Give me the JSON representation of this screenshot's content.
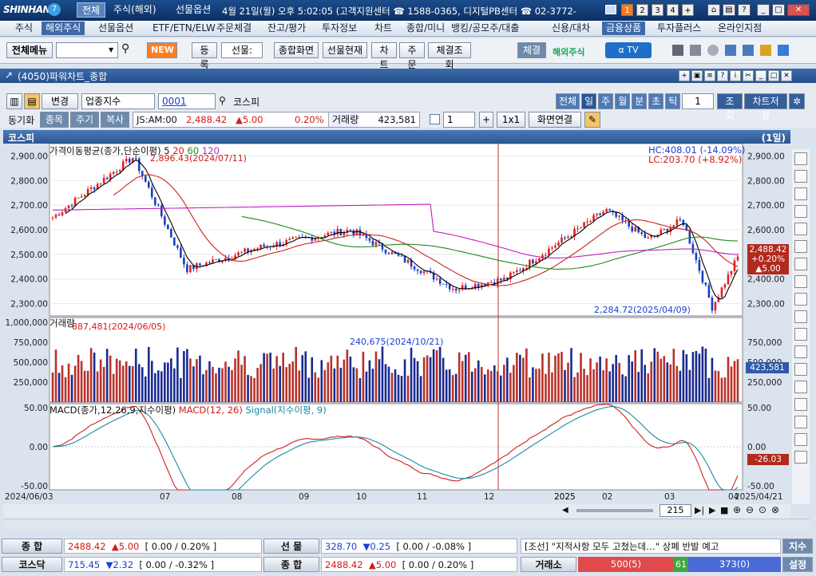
{
  "titlebar": {
    "logo": "SHINHAN",
    "tabs": [
      "전체",
      "주식(해외)",
      "선물옵션"
    ],
    "info": "4월 21일(월) 오후 5:02:05 (고객지원센터 ☎ 1588-0365, 디지털PB센터 ☎ 02-3772-",
    "nums": [
      "1",
      "2",
      "3",
      "4",
      "+"
    ]
  },
  "menu": [
    "주식",
    "해외주식",
    "선물옵션",
    "ETF/ETN/ELW",
    "주문체결",
    "잔고/평가",
    "투자정보",
    "차트",
    "종합/미니",
    "뱅킹/공모주/대출",
    "신용/대차",
    "금융상품",
    "투자플러스",
    "온라인지점"
  ],
  "toolbar": {
    "all_menu": "전체메뉴",
    "new": "NEW",
    "register": "등록",
    "select": "선물:",
    "comp": "종합화면",
    "fut_now": "선물현재",
    "chart": "차트",
    "order": "주문",
    "exec": "체결조회",
    "fill": "체결",
    "overseas": "해외주식"
  },
  "window": {
    "title": "(4050)파워차트_종합"
  },
  "controls": {
    "change": "변경",
    "type": "업종지수",
    "code": "0001",
    "name": "코스피",
    "periods": [
      "전체",
      "일",
      "주",
      "월",
      "분",
      "초",
      "틱"
    ],
    "count": "1",
    "query": "조회",
    "save": "차트저장"
  },
  "sync": {
    "label": "동기화",
    "buttons": [
      "종목",
      "주기",
      "복사"
    ],
    "time": "JS:AM:00",
    "price": "2,488.42",
    "change": "▲5.00",
    "pct": "0.20%",
    "vol_label": "거래량",
    "volume": "423,581",
    "num": "1",
    "ratio": "1x1",
    "link": "화면연결"
  },
  "chart_header": {
    "name": "코스피",
    "period": "(1일)"
  },
  "panes": {
    "price_title": "가격이동평균(종가,단순이평) 5",
    "ma_periods": [
      "20",
      "60",
      "120"
    ],
    "hc": "HC:408.01 (-14.09%)",
    "lc": "LC:203.70 (+8.92%)",
    "high_annot": "2,896.43(2024/07/11)",
    "low_annot": "2,284.72(2025/04/09)",
    "vol_title": "거래량",
    "vol_annot1": "887,481(2024/06/05)",
    "vol_annot2": "240,675(2024/10/21)",
    "macd_title": "MACD(종가,12,26,9,지수이평)",
    "macd_series": "MACD(12, 26)",
    "signal_series": "Signal(지수이평, 9)",
    "price_tag": "2,488.42",
    "price_tag2": "+0.20%",
    "price_tag3": "▲5.00",
    "vol_tag": "423,581",
    "macd_tag": "-26.03"
  },
  "axes": {
    "price": [
      "2,900.00",
      "2,800.00",
      "2,700.00",
      "2,600.00",
      "2,500.00",
      "2,400.00",
      "2,300.00"
    ],
    "vol": [
      "1,000,000",
      "750,000",
      "500,000",
      "250,000"
    ],
    "vol_r": [
      "750,000",
      "500,000",
      "250,000"
    ],
    "macd": [
      "50.00",
      "0.00",
      "-50.00"
    ],
    "dates": [
      "2024/06/03",
      "07",
      "08",
      "09",
      "10",
      "11",
      "12",
      "2025",
      "02",
      "03",
      "04",
      "2025/04/21"
    ],
    "zoom": "215"
  },
  "status": {
    "r1": [
      {
        "l": "종  합",
        "v": "2488.42",
        "c": "▲5.00",
        "b": "[ 0.00  /  0.20%  ]"
      },
      {
        "l": "선  물",
        "v": "328.70",
        "c": "▼0.25",
        "b": "[ 0.00  /  -0.08%  ]"
      }
    ],
    "news": "[조선] \"지적사항 모두 고쳤는데…\" 상폐 반발 예고",
    "news_btn": "지수",
    "r2": [
      {
        "l": "코스닥",
        "v": "715.45",
        "c": "▼2.32",
        "b": "[ 0.00  /  -0.32%  ]"
      },
      {
        "l": "종  합",
        "v": "2488.42",
        "c": "▲5.00",
        "b": "[ 0.00  /  0.20%  ]"
      }
    ],
    "exch": "거래소",
    "bar_red": "500(5)",
    "bar_green": "61",
    "bar_blue": "373(0)",
    "settings": "설정"
  },
  "chart_data": {
    "type": "line",
    "title": "코스피",
    "x_range": [
      "2024/06/03",
      "2025/04/21"
    ],
    "ylim": [
      2250,
      2950
    ],
    "close_series_key_points": [
      {
        "x": "2024/06/03",
        "y": 2650
      },
      {
        "x": "2024/07/11",
        "y": 2896.43
      },
      {
        "x": "2024/08/05",
        "y": 2440
      },
      {
        "x": "2024/09/09",
        "y": 2530
      },
      {
        "x": "2024/10/21",
        "y": 2600
      },
      {
        "x": "2024/12/09",
        "y": 2360
      },
      {
        "x": "2025/01/02",
        "y": 2400
      },
      {
        "x": "2025/02/18",
        "y": 2680
      },
      {
        "x": "2025/03/10",
        "y": 2560
      },
      {
        "x": "2025/03/26",
        "y": 2640
      },
      {
        "x": "2025/04/09",
        "y": 2284.72
      },
      {
        "x": "2025/04/21",
        "y": 2488.42
      }
    ],
    "macd_range": [
      -60,
      50
    ]
  }
}
